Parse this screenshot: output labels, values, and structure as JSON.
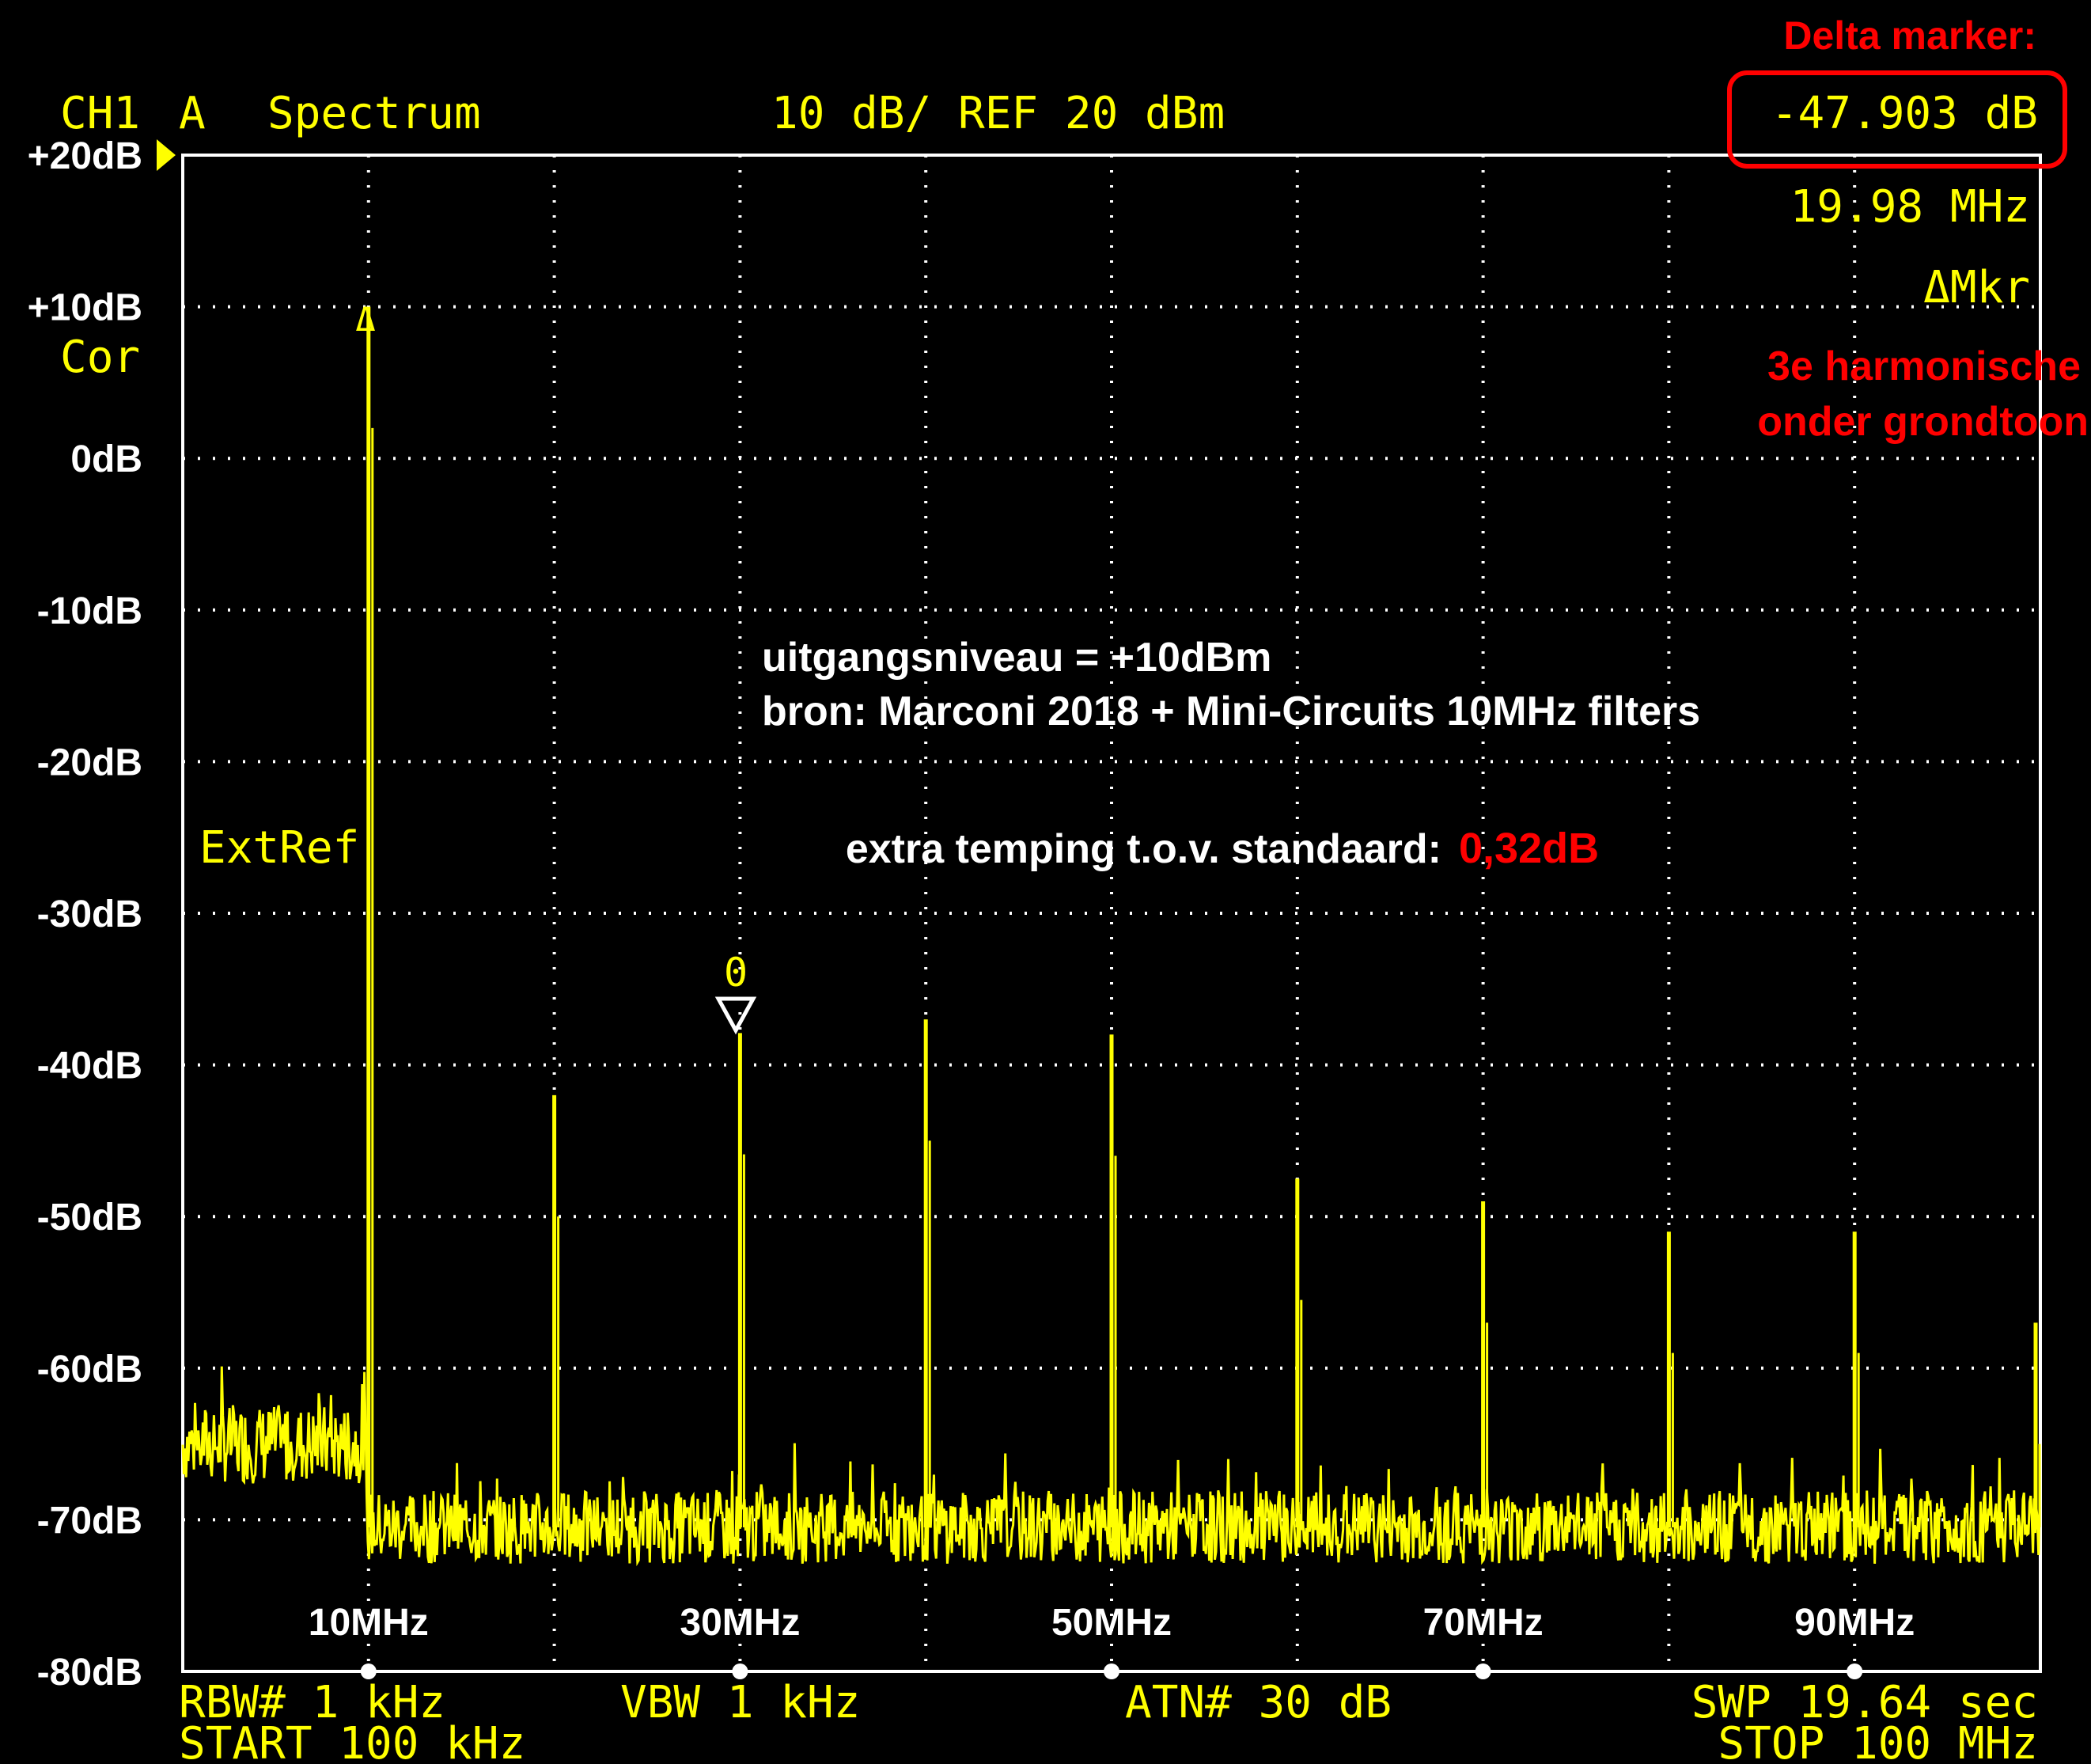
{
  "colors": {
    "background": "#000000",
    "trace": "#ffff00",
    "grid": "#ffffff",
    "annotation": "#ff0000",
    "text_white": "#ffffff"
  },
  "header": {
    "channel": "CH1",
    "trace_label": "A",
    "mode": "Spectrum",
    "scale": "10 dB/ REF 20 dBm",
    "delta_marker_title": "Delta marker:",
    "delta_value": "-47.903 dB",
    "delta_freq": "19.98 MHz",
    "delta_label": "ΔMkr",
    "harmonic_note_line1": "3e harmonische",
    "harmonic_note_line2": "onder grondtoon"
  },
  "side_labels": {
    "cor": "Cor",
    "extref": "ExtRef"
  },
  "annotations": {
    "line1": "uitgangsniveau = +10dBm",
    "line2": "bron: Marconi 2018 + Mini-Circuits 10MHz filters",
    "extra_label": "extra temping t.o.v. standaard:",
    "extra_value": "0,32dB"
  },
  "marker": {
    "ref_symbol": "Δ",
    "number_label": "0"
  },
  "footer": {
    "rbw": "RBW# 1 kHz",
    "vbw": "VBW 1 kHz",
    "atn": "ATN# 30 dB",
    "swp": "SWP 19.64 sec",
    "start": "START 100 kHz",
    "stop": "STOP 100 MHz"
  },
  "chart_data": {
    "type": "line",
    "title": "",
    "xlabel": "",
    "ylabel": "",
    "x_unit": "MHz",
    "xlim": [
      0,
      100
    ],
    "ylim": [
      -80,
      20
    ],
    "grid": true,
    "y_ticks": [
      {
        "value": 20,
        "label": "+20dB"
      },
      {
        "value": 10,
        "label": "+10dB"
      },
      {
        "value": 0,
        "label": "0dB"
      },
      {
        "value": -10,
        "label": "-10dB"
      },
      {
        "value": -20,
        "label": "-20dB"
      },
      {
        "value": -30,
        "label": "-30dB"
      },
      {
        "value": -40,
        "label": "-40dB"
      },
      {
        "value": -50,
        "label": "-50dB"
      },
      {
        "value": -60,
        "label": "-60dB"
      },
      {
        "value": -70,
        "label": "-70dB"
      },
      {
        "value": -80,
        "label": "-80dB"
      }
    ],
    "x_ticks": [
      {
        "value": 10,
        "label": "10MHz"
      },
      {
        "value": 30,
        "label": "30MHz"
      },
      {
        "value": 50,
        "label": "50MHz"
      },
      {
        "value": 70,
        "label": "70MHz"
      },
      {
        "value": 90,
        "label": "90MHz"
      }
    ],
    "noise_floor_db": -70.5,
    "noise_floor_below_10mhz_db": -65,
    "series": [
      {
        "peaks": [
          {
            "freq_mhz": 10,
            "level_db": 10
          },
          {
            "freq_mhz": 20,
            "level_db": -42
          },
          {
            "freq_mhz": 30,
            "level_db": -37.9
          },
          {
            "freq_mhz": 40,
            "level_db": -37
          },
          {
            "freq_mhz": 50,
            "level_db": -38
          },
          {
            "freq_mhz": 60,
            "level_db": -47.5
          },
          {
            "freq_mhz": 70,
            "level_db": -49
          },
          {
            "freq_mhz": 80,
            "level_db": -51
          },
          {
            "freq_mhz": 90,
            "level_db": -51
          },
          {
            "freq_mhz": 100,
            "level_db": -57
          }
        ]
      }
    ]
  }
}
